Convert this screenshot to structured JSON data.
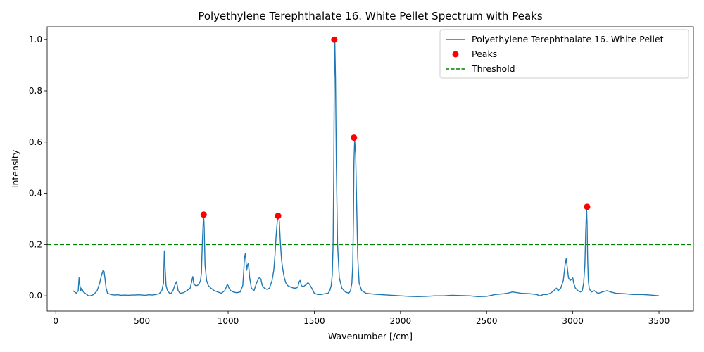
{
  "chart_data": {
    "type": "line",
    "title": "Polyethylene Terephthalate 16. White Pellet Spectrum with Peaks",
    "xlabel": "Wavenumber [/cm]",
    "ylabel": "Intensity",
    "xlim": [
      -50,
      3700
    ],
    "ylim": [
      -0.06,
      1.05
    ],
    "xticks": [
      0,
      500,
      1000,
      1500,
      2000,
      2500,
      3000,
      3500
    ],
    "xtick_labels": [
      "0",
      "500",
      "1000",
      "1500",
      "2000",
      "2500",
      "3000",
      "3500"
    ],
    "yticks": [
      0.0,
      0.2,
      0.4,
      0.6,
      0.8,
      1.0
    ],
    "ytick_labels": [
      "0.0",
      "0.2",
      "0.4",
      "0.6",
      "0.8",
      "1.0"
    ],
    "grid": false,
    "legend_position": "top-right",
    "colors": {
      "spectrum": "#1f77b4",
      "peaks": "#ff0000",
      "threshold": "#008000"
    },
    "series": [
      {
        "name": "Polyethylene Terephthalate 16. White Pellet",
        "kind": "line",
        "x": [
          100,
          110,
          120,
          130,
          135,
          140,
          145,
          150,
          160,
          170,
          180,
          190,
          200,
          220,
          240,
          255,
          265,
          275,
          280,
          285,
          292,
          300,
          320,
          340,
          360,
          380,
          400,
          420,
          440,
          460,
          480,
          500,
          520,
          540,
          560,
          580,
          600,
          615,
          625,
          630,
          635,
          640,
          648,
          660,
          670,
          680,
          690,
          700,
          705,
          710,
          720,
          740,
          760,
          780,
          790,
          795,
          800,
          810,
          820,
          830,
          840,
          845,
          850,
          855,
          858,
          861,
          866,
          875,
          885,
          900,
          920,
          940,
          960,
          980,
          990,
          995,
          1000,
          1005,
          1015,
          1030,
          1050,
          1070,
          1085,
          1090,
          1095,
          1100,
          1103,
          1108,
          1112,
          1116,
          1120,
          1125,
          1135,
          1150,
          1165,
          1175,
          1180,
          1185,
          1190,
          1198,
          1210,
          1225,
          1240,
          1255,
          1265,
          1272,
          1278,
          1285,
          1290,
          1293,
          1297,
          1303,
          1310,
          1318,
          1326,
          1335,
          1345,
          1360,
          1380,
          1395,
          1405,
          1412,
          1418,
          1425,
          1435,
          1445,
          1455,
          1460,
          1465,
          1472,
          1485,
          1500,
          1520,
          1540,
          1560,
          1580,
          1590,
          1598,
          1604,
          1609,
          1613,
          1616,
          1619,
          1623,
          1628,
          1635,
          1645,
          1660,
          1680,
          1700,
          1710,
          1718,
          1723,
          1727,
          1730,
          1734,
          1740,
          1746,
          1752,
          1760,
          1775,
          1800,
          1850,
          1900,
          1950,
          2000,
          2050,
          2100,
          2150,
          2200,
          2250,
          2300,
          2350,
          2400,
          2450,
          2500,
          2550,
          2600,
          2620,
          2650,
          2700,
          2750,
          2790,
          2810,
          2830,
          2850,
          2870,
          2890,
          2905,
          2915,
          2930,
          2945,
          2955,
          2962,
          2968,
          2975,
          2985,
          2995,
          3000,
          3005,
          3015,
          3030,
          3045,
          3055,
          3063,
          3070,
          3075,
          3080,
          3083,
          3086,
          3090,
          3095,
          3102,
          3110,
          3125,
          3140,
          3150,
          3170,
          3200,
          3220,
          3250,
          3300,
          3350,
          3400,
          3450,
          3500
        ],
        "y": [
          0.02,
          0.015,
          0.01,
          0.02,
          0.07,
          0.04,
          0.02,
          0.03,
          0.015,
          0.01,
          0.005,
          0.0,
          0.0,
          0.005,
          0.02,
          0.05,
          0.08,
          0.1,
          0.095,
          0.07,
          0.03,
          0.01,
          0.005,
          0.003,
          0.004,
          0.002,
          0.003,
          0.002,
          0.003,
          0.003,
          0.004,
          0.003,
          0.002,
          0.004,
          0.003,
          0.005,
          0.008,
          0.02,
          0.05,
          0.175,
          0.1,
          0.04,
          0.02,
          0.01,
          0.01,
          0.02,
          0.04,
          0.055,
          0.04,
          0.02,
          0.01,
          0.012,
          0.02,
          0.03,
          0.06,
          0.075,
          0.05,
          0.04,
          0.04,
          0.045,
          0.06,
          0.09,
          0.2,
          0.28,
          0.31,
          0.27,
          0.12,
          0.06,
          0.04,
          0.03,
          0.02,
          0.015,
          0.01,
          0.02,
          0.035,
          0.045,
          0.04,
          0.03,
          0.02,
          0.015,
          0.012,
          0.015,
          0.04,
          0.09,
          0.15,
          0.165,
          0.14,
          0.1,
          0.12,
          0.125,
          0.11,
          0.07,
          0.03,
          0.02,
          0.05,
          0.065,
          0.07,
          0.07,
          0.065,
          0.04,
          0.03,
          0.025,
          0.03,
          0.06,
          0.1,
          0.16,
          0.23,
          0.29,
          0.305,
          0.31,
          0.29,
          0.21,
          0.14,
          0.1,
          0.07,
          0.05,
          0.04,
          0.035,
          0.03,
          0.03,
          0.035,
          0.055,
          0.06,
          0.04,
          0.035,
          0.04,
          0.045,
          0.05,
          0.05,
          0.045,
          0.03,
          0.01,
          0.005,
          0.005,
          0.008,
          0.01,
          0.02,
          0.04,
          0.08,
          0.2,
          0.5,
          0.85,
          0.995,
          0.85,
          0.5,
          0.2,
          0.07,
          0.03,
          0.015,
          0.01,
          0.02,
          0.05,
          0.12,
          0.3,
          0.52,
          0.61,
          0.55,
          0.35,
          0.15,
          0.05,
          0.02,
          0.01,
          0.006,
          0.004,
          0.002,
          0.0,
          -0.002,
          -0.003,
          -0.002,
          0.0,
          0.0,
          0.002,
          0.001,
          0.0,
          -0.003,
          -0.002,
          0.005,
          0.008,
          0.01,
          0.015,
          0.01,
          0.008,
          0.005,
          0.0,
          0.005,
          0.005,
          0.01,
          0.02,
          0.03,
          0.02,
          0.03,
          0.06,
          0.12,
          0.145,
          0.11,
          0.07,
          0.06,
          0.065,
          0.07,
          0.05,
          0.03,
          0.02,
          0.015,
          0.02,
          0.05,
          0.12,
          0.25,
          0.345,
          0.28,
          0.15,
          0.06,
          0.03,
          0.02,
          0.015,
          0.02,
          0.012,
          0.01,
          0.015,
          0.02,
          0.015,
          0.01,
          0.008,
          0.005,
          0.005,
          0.003,
          0.0
        ]
      },
      {
        "name": "Peaks",
        "kind": "scatter",
        "x": [
          858,
          1290,
          1616,
          1730,
          3083
        ],
        "y": [
          0.317,
          0.312,
          1.0,
          0.617,
          0.347
        ]
      },
      {
        "name": "Threshold",
        "kind": "hline",
        "y": 0.2
      }
    ]
  }
}
